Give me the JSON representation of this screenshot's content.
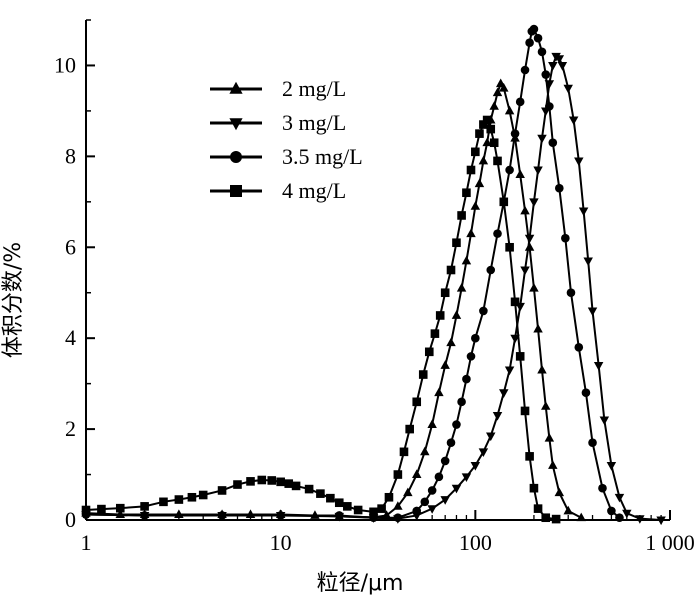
{
  "chart_data": {
    "type": "line",
    "title": "",
    "xlabel": "粒径/μm",
    "ylabel": "体积分数/%",
    "x_scale": "log",
    "xlim": [
      1,
      1000
    ],
    "ylim": [
      0,
      11
    ],
    "x_ticks": [
      1,
      10,
      100,
      1000
    ],
    "x_tick_labels": [
      "1",
      "10",
      "100",
      "1 000"
    ],
    "y_ticks": [
      0,
      2,
      4,
      6,
      8,
      10
    ],
    "y_tick_labels": [
      "0",
      "2",
      "4",
      "6",
      "8",
      "10"
    ],
    "grid": false,
    "legend_position": "top-left",
    "series": [
      {
        "name": "2 mg/L",
        "marker": "triangle-up",
        "points": [
          [
            1,
            0.15
          ],
          [
            1.5,
            0.12
          ],
          [
            2,
            0.12
          ],
          [
            3,
            0.12
          ],
          [
            5,
            0.12
          ],
          [
            7,
            0.12
          ],
          [
            10,
            0.12
          ],
          [
            15,
            0.1
          ],
          [
            20,
            0.08
          ],
          [
            30,
            0.06
          ],
          [
            35,
            0.1
          ],
          [
            40,
            0.3
          ],
          [
            45,
            0.6
          ],
          [
            50,
            1.0
          ],
          [
            55,
            1.5
          ],
          [
            60,
            2.1
          ],
          [
            65,
            2.8
          ],
          [
            70,
            3.4
          ],
          [
            75,
            3.9
          ],
          [
            80,
            4.5
          ],
          [
            85,
            5.1
          ],
          [
            90,
            5.7
          ],
          [
            95,
            6.3
          ],
          [
            100,
            6.9
          ],
          [
            105,
            7.4
          ],
          [
            110,
            7.9
          ],
          [
            115,
            8.3
          ],
          [
            120,
            8.8
          ],
          [
            125,
            9.1
          ],
          [
            130,
            9.4
          ],
          [
            135,
            9.6
          ],
          [
            140,
            9.5
          ],
          [
            150,
            9.0
          ],
          [
            160,
            8.4
          ],
          [
            170,
            7.6
          ],
          [
            180,
            6.8
          ],
          [
            190,
            6.0
          ],
          [
            200,
            5.1
          ],
          [
            210,
            4.2
          ],
          [
            220,
            3.3
          ],
          [
            230,
            2.5
          ],
          [
            240,
            1.8
          ],
          [
            250,
            1.2
          ],
          [
            270,
            0.6
          ],
          [
            300,
            0.2
          ],
          [
            350,
            0.05
          ]
        ]
      },
      {
        "name": "3 mg/L",
        "marker": "triangle-down",
        "points": [
          [
            1,
            0.12
          ],
          [
            2,
            0.1
          ],
          [
            5,
            0.1
          ],
          [
            10,
            0.1
          ],
          [
            20,
            0.08
          ],
          [
            30,
            0.05
          ],
          [
            40,
            0.03
          ],
          [
            50,
            0.1
          ],
          [
            60,
            0.25
          ],
          [
            70,
            0.45
          ],
          [
            80,
            0.7
          ],
          [
            90,
            0.95
          ],
          [
            100,
            1.2
          ],
          [
            110,
            1.5
          ],
          [
            120,
            1.85
          ],
          [
            130,
            2.3
          ],
          [
            140,
            2.8
          ],
          [
            150,
            3.3
          ],
          [
            160,
            4.0
          ],
          [
            170,
            4.7
          ],
          [
            180,
            5.5
          ],
          [
            190,
            6.2
          ],
          [
            200,
            7.0
          ],
          [
            210,
            7.7
          ],
          [
            220,
            8.4
          ],
          [
            230,
            9.0
          ],
          [
            240,
            9.6
          ],
          [
            250,
            10.0
          ],
          [
            260,
            10.2
          ],
          [
            270,
            10.15
          ],
          [
            280,
            10.0
          ],
          [
            300,
            9.5
          ],
          [
            320,
            8.8
          ],
          [
            340,
            7.9
          ],
          [
            360,
            6.8
          ],
          [
            380,
            5.7
          ],
          [
            400,
            4.6
          ],
          [
            430,
            3.4
          ],
          [
            460,
            2.2
          ],
          [
            500,
            1.2
          ],
          [
            550,
            0.5
          ],
          [
            600,
            0.15
          ],
          [
            700,
            0.03
          ],
          [
            900,
            0.0
          ]
        ]
      },
      {
        "name": "3.5 mg/L",
        "marker": "circle",
        "points": [
          [
            1,
            0.12
          ],
          [
            2,
            0.1
          ],
          [
            5,
            0.1
          ],
          [
            10,
            0.1
          ],
          [
            20,
            0.1
          ],
          [
            30,
            0.05
          ],
          [
            40,
            0.05
          ],
          [
            50,
            0.2
          ],
          [
            55,
            0.4
          ],
          [
            60,
            0.65
          ],
          [
            65,
            0.95
          ],
          [
            70,
            1.3
          ],
          [
            75,
            1.7
          ],
          [
            80,
            2.1
          ],
          [
            85,
            2.6
          ],
          [
            90,
            3.1
          ],
          [
            95,
            3.6
          ],
          [
            100,
            4.0
          ],
          [
            110,
            4.6
          ],
          [
            120,
            5.5
          ],
          [
            130,
            6.3
          ],
          [
            140,
            7.0
          ],
          [
            150,
            7.7
          ],
          [
            160,
            8.5
          ],
          [
            170,
            9.2
          ],
          [
            180,
            9.9
          ],
          [
            190,
            10.5
          ],
          [
            195,
            10.75
          ],
          [
            200,
            10.8
          ],
          [
            210,
            10.6
          ],
          [
            220,
            10.3
          ],
          [
            230,
            9.8
          ],
          [
            240,
            9.1
          ],
          [
            250,
            8.3
          ],
          [
            270,
            7.3
          ],
          [
            290,
            6.2
          ],
          [
            310,
            5.0
          ],
          [
            340,
            3.8
          ],
          [
            370,
            2.8
          ],
          [
            400,
            1.7
          ],
          [
            450,
            0.7
          ],
          [
            500,
            0.2
          ],
          [
            550,
            0.05
          ]
        ]
      },
      {
        "name": "4 mg/L",
        "marker": "square",
        "points": [
          [
            1,
            0.22
          ],
          [
            1.2,
            0.24
          ],
          [
            1.5,
            0.26
          ],
          [
            2,
            0.3
          ],
          [
            2.5,
            0.4
          ],
          [
            3,
            0.45
          ],
          [
            3.5,
            0.5
          ],
          [
            4,
            0.55
          ],
          [
            5,
            0.65
          ],
          [
            6,
            0.78
          ],
          [
            7,
            0.85
          ],
          [
            8,
            0.88
          ],
          [
            9,
            0.87
          ],
          [
            10,
            0.84
          ],
          [
            11,
            0.8
          ],
          [
            12,
            0.75
          ],
          [
            14,
            0.68
          ],
          [
            16,
            0.58
          ],
          [
            18,
            0.48
          ],
          [
            20,
            0.38
          ],
          [
            22,
            0.3
          ],
          [
            25,
            0.22
          ],
          [
            30,
            0.18
          ],
          [
            33,
            0.25
          ],
          [
            36,
            0.5
          ],
          [
            40,
            1.0
          ],
          [
            43,
            1.5
          ],
          [
            46,
            2.0
          ],
          [
            50,
            2.6
          ],
          [
            54,
            3.2
          ],
          [
            58,
            3.7
          ],
          [
            62,
            4.1
          ],
          [
            66,
            4.5
          ],
          [
            70,
            5.0
          ],
          [
            75,
            5.5
          ],
          [
            80,
            6.1
          ],
          [
            85,
            6.7
          ],
          [
            90,
            7.2
          ],
          [
            95,
            7.7
          ],
          [
            100,
            8.1
          ],
          [
            105,
            8.5
          ],
          [
            110,
            8.7
          ],
          [
            115,
            8.8
          ],
          [
            120,
            8.6
          ],
          [
            125,
            8.3
          ],
          [
            130,
            7.9
          ],
          [
            140,
            7.0
          ],
          [
            150,
            6.0
          ],
          [
            160,
            4.8
          ],
          [
            170,
            3.6
          ],
          [
            180,
            2.4
          ],
          [
            190,
            1.4
          ],
          [
            200,
            0.7
          ],
          [
            210,
            0.25
          ],
          [
            230,
            0.05
          ],
          [
            260,
            0.02
          ]
        ]
      }
    ]
  }
}
